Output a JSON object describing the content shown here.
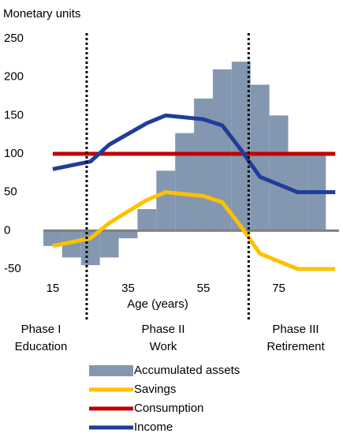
{
  "chart_data": {
    "type": "combo",
    "y_axis_label": "Monetary units",
    "x_axis_label": "Age (years)",
    "xlim": [
      12.5,
      91
    ],
    "ylim": [
      -50,
      250
    ],
    "xticks": [
      15,
      35,
      55,
      75
    ],
    "yticks": [
      -50,
      0,
      50,
      100,
      150,
      200,
      250
    ],
    "vlines": [
      24,
      67
    ],
    "phases": [
      {
        "lines": [
          "Phase I",
          "Education"
        ]
      },
      {
        "lines": [
          "Phase II",
          "Work"
        ]
      },
      {
        "lines": [
          "Phase III",
          "Retirement"
        ]
      }
    ],
    "series": [
      {
        "name": "Accumulated assets",
        "type": "histogram",
        "color": "#8497b0",
        "bins": [
          12.5,
          17.5,
          22.5,
          27.5,
          32.5,
          37.5,
          42.5,
          47.5,
          52.5,
          57.5,
          62.5,
          67.5,
          72.5,
          77.5,
          82.5,
          87.5
        ],
        "values": [
          -20,
          -35,
          -45,
          -35,
          -10,
          28,
          78,
          127,
          172,
          210,
          220,
          190,
          150,
          100,
          100
        ]
      },
      {
        "name": "Savings",
        "type": "line",
        "color": "#ffc000",
        "x": [
          15,
          25,
          30,
          40,
          45,
          55,
          60,
          65,
          70,
          80,
          90
        ],
        "values": [
          -20,
          -10,
          10,
          40,
          50,
          45,
          37,
          5,
          -30,
          -50,
          -50
        ]
      },
      {
        "name": "Consumption",
        "type": "line",
        "color": "#c00000",
        "x": [
          15,
          90
        ],
        "values": [
          100,
          100
        ]
      },
      {
        "name": "Income",
        "type": "line",
        "color": "#1f3d99",
        "x": [
          15,
          25,
          30,
          40,
          45,
          55,
          60,
          65,
          70,
          80,
          90
        ],
        "values": [
          80,
          90,
          112,
          140,
          150,
          145,
          137,
          105,
          70,
          50,
          50
        ]
      }
    ]
  }
}
